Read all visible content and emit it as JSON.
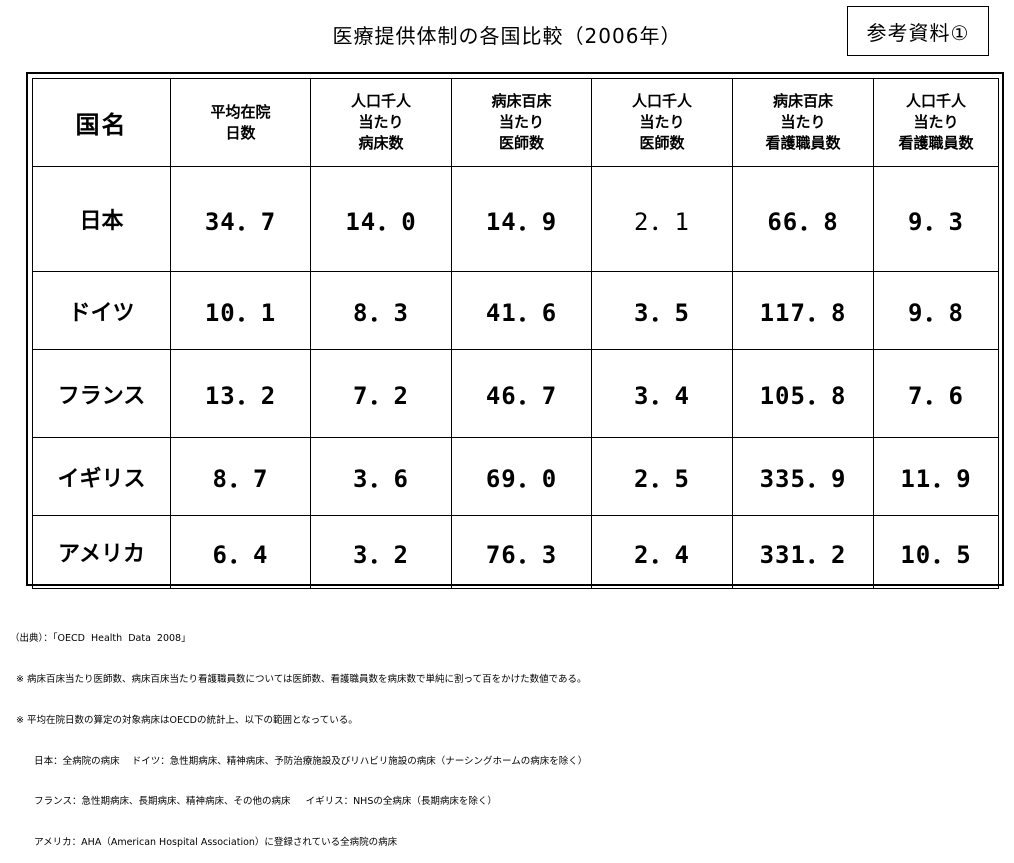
{
  "title": "医療提供体制の各国比較（2006年）",
  "reference_label": "参考資料①",
  "table": {
    "headers": [
      {
        "lines": [
          "国名"
        ]
      },
      {
        "lines": [
          "平均在院",
          "日数"
        ]
      },
      {
        "lines": [
          "人口千人",
          "当たり",
          "病床数"
        ]
      },
      {
        "lines": [
          "病床百床",
          "当たり",
          "医師数"
        ]
      },
      {
        "lines": [
          "人口千人",
          "当たり",
          "医師数"
        ]
      },
      {
        "lines": [
          "病床百床",
          "当たり",
          "看護職員数"
        ]
      },
      {
        "lines": [
          "人口千人",
          "当たり",
          "看護職員数"
        ]
      }
    ],
    "rows": [
      {
        "country": "日本",
        "values": [
          "34．7",
          "14．0",
          "14．9",
          "2．1",
          "66．8",
          "9．3"
        ]
      },
      {
        "country": "ドイツ",
        "values": [
          "10．1",
          "8．3",
          "41．6",
          "3．5",
          "117．8",
          "9．8"
        ]
      },
      {
        "country": "フランス",
        "values": [
          "13．2",
          "7．2",
          "46．7",
          "3．4",
          "105．8",
          "7．6"
        ]
      },
      {
        "country": "イギリス",
        "values": [
          "8．7",
          "3．6",
          "69．0",
          "2．5",
          "335．9",
          "11．9"
        ]
      },
      {
        "country": "アメリカ",
        "values": [
          "6．4",
          "3．2",
          "76．3",
          "2．4",
          "331．2",
          "10．5"
        ]
      }
    ]
  },
  "notes": [
    "（出典）：「OECD  Health  Data  2008」",
    "  ※ 病床百床当たり医師数、病床百床当たり看護職員数については医師数、看護職員数を病床数で単純に割って百をかけた数値である。",
    "  ※ 平均在院日数の算定の対象病床はOECDの統計上、以下の範囲となっている。",
    "        日本：全病院の病床    ドイツ：急性期病床、精神病床、予防治療施設及びリハビリ施設の病床（ナーシングホームの病床を除く）",
    "        フランス：急性期病床、長期病床、精神病床、その他の病床     イギリス：NHSの全病床（長期病床を除く）",
    "        アメリカ：AHA（American Hospital Association）に登録されている全病院の病床"
  ]
}
